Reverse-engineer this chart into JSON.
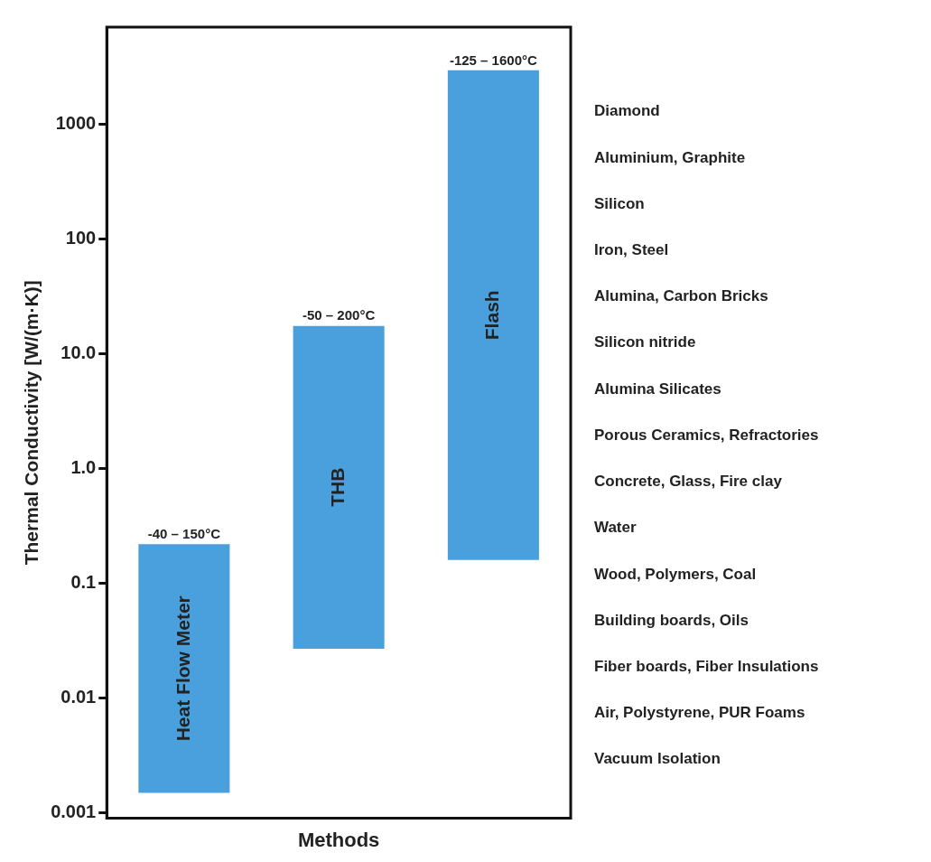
{
  "chart_data": {
    "type": "bar",
    "xlabel": "Methods",
    "ylabel": "Thermal Conductivity [W/(m·K)]",
    "categories": [
      "Heat Flow Meter",
      "THB",
      "Flash"
    ],
    "base": [
      0.0015,
      0.027,
      0.16
    ],
    "values": [
      0.2185,
      17.473,
      2939.84
    ],
    "color": "#4aa0dd",
    "log": true,
    "grid": false,
    "tick_labels": "y",
    "ylim": [
      0.0009,
      7000
    ],
    "yticks": [
      0.001,
      0.01,
      {
        "value": 0.1,
        "label": "0.1"
      },
      {
        "value": 1,
        "label": "1.0"
      },
      {
        "value": 10,
        "label": "10.0"
      },
      100,
      1000
    ],
    "annotations": [
      {
        "text": "-40 – 150°C",
        "x": "Heat Flow Meter",
        "y": 0.22
      },
      {
        "text": "-50 – 200°C",
        "x": "THB",
        "y": 17.5
      },
      {
        "text": "-125 – 1600°C",
        "x": "Flash",
        "y": 2940
      },
      "Diamond",
      "Aluminium, Graphite",
      "Silicon",
      "Iron, Steel",
      "Alumina, Carbon Bricks",
      "Silicon nitride",
      "Alumina Silicates",
      "Porous Ceramics, Refractories",
      "Concrete, Glass, Fire clay",
      "Water",
      "Wood, Polymers, Coal",
      "Building boards, Oils",
      "Fiber boards, Fiber Insulations",
      "Air, Polystyrene, PUR Foams",
      "Vacuum Isolation"
    ]
  }
}
